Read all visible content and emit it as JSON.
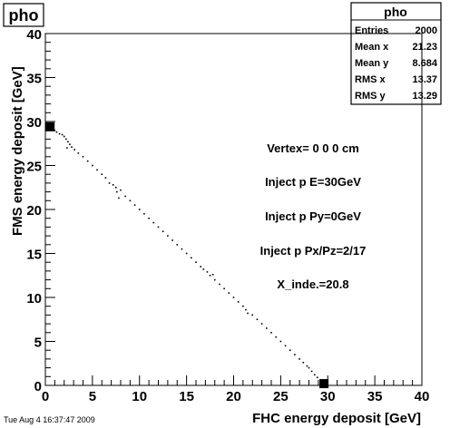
{
  "title_box": {
    "text": "pho"
  },
  "stats": {
    "header": "pho",
    "rows": [
      {
        "label": "Entries",
        "value": "2000"
      },
      {
        "label": "Mean x",
        "value": "21.23"
      },
      {
        "label": "Mean y",
        "value": "8.684"
      },
      {
        "label": "RMS x",
        "value": "13.37"
      },
      {
        "label": "RMS y",
        "value": "13.29"
      }
    ]
  },
  "annotations": [
    "Vertex= 0 0 0 cm",
    "Inject p E=30GeV",
    "Inject p Py=0GeV",
    "Inject p Px/Pz=2/17",
    "X_inde.=20.8"
  ],
  "timestamp": "Tue Aug  4 16:37:47 2009",
  "chart_data": {
    "type": "scatter",
    "title": "pho",
    "xlabel": "FHC energy deposit [GeV]",
    "ylabel": "FMS energy deposit [GeV]",
    "xlim": [
      0,
      40
    ],
    "ylim": [
      0,
      40
    ],
    "xticks": [
      0,
      5,
      10,
      15,
      20,
      25,
      30,
      35,
      40
    ],
    "yticks": [
      0,
      5,
      10,
      15,
      20,
      25,
      30,
      35,
      40
    ],
    "xticklabels": [
      "0",
      "5",
      "10",
      "15",
      "20",
      "25",
      "30",
      "35",
      "40"
    ],
    "yticklabels": [
      "0",
      "5",
      "10",
      "15",
      "20",
      "25",
      "30",
      "35",
      "40"
    ],
    "grid": false,
    "clusters": [
      {
        "x": 0.5,
        "y": 29.4,
        "dense": true
      },
      {
        "x": 29.6,
        "y": 0.2,
        "dense": true
      }
    ],
    "points": [
      [
        1.0,
        29.0
      ],
      [
        1.2,
        28.8
      ],
      [
        1.5,
        28.6
      ],
      [
        1.8,
        28.5
      ],
      [
        2.0,
        28.3
      ],
      [
        2.2,
        28.0
      ],
      [
        2.4,
        27.7
      ],
      [
        2.6,
        27.4
      ],
      [
        2.3,
        27.0
      ],
      [
        2.8,
        27.1
      ],
      [
        3.1,
        26.8
      ],
      [
        3.5,
        26.4
      ],
      [
        4.0,
        26.0
      ],
      [
        4.5,
        25.5
      ],
      [
        5.0,
        25.0
      ],
      [
        5.5,
        24.5
      ],
      [
        6.0,
        24.0
      ],
      [
        6.4,
        23.6
      ],
      [
        6.8,
        23.0
      ],
      [
        7.2,
        22.8
      ],
      [
        7.5,
        22.5
      ],
      [
        7.6,
        22.0
      ],
      [
        7.8,
        21.3
      ],
      [
        8.0,
        22.2
      ],
      [
        8.5,
        21.5
      ],
      [
        9.0,
        21.0
      ],
      [
        9.5,
        20.5
      ],
      [
        10.0,
        20.0
      ],
      [
        10.5,
        19.5
      ],
      [
        11.0,
        19.0
      ],
      [
        11.5,
        18.5
      ],
      [
        12.0,
        18.0
      ],
      [
        12.5,
        17.5
      ],
      [
        13.0,
        17.0
      ],
      [
        13.5,
        16.5
      ],
      [
        14.0,
        16.0
      ],
      [
        14.5,
        15.5
      ],
      [
        15.0,
        15.0
      ],
      [
        15.5,
        14.5
      ],
      [
        16.0,
        14.0
      ],
      [
        16.5,
        13.5
      ],
      [
        16.8,
        13.2
      ],
      [
        17.2,
        12.9
      ],
      [
        17.5,
        12.5
      ],
      [
        17.8,
        12.6
      ],
      [
        18.0,
        12.0
      ],
      [
        18.5,
        11.5
      ],
      [
        19.0,
        11.0
      ],
      [
        19.5,
        10.5
      ],
      [
        20.0,
        10.0
      ],
      [
        20.5,
        9.5
      ],
      [
        21.0,
        9.0
      ],
      [
        21.3,
        8.6
      ],
      [
        21.5,
        8.2
      ],
      [
        22.0,
        8.0
      ],
      [
        22.5,
        7.5
      ],
      [
        23.0,
        7.0
      ],
      [
        23.5,
        6.5
      ],
      [
        24.0,
        6.0
      ],
      [
        24.5,
        5.5
      ],
      [
        25.0,
        5.0
      ],
      [
        25.5,
        4.5
      ],
      [
        26.0,
        4.0
      ],
      [
        26.5,
        3.5
      ],
      [
        27.0,
        3.0
      ],
      [
        27.4,
        2.6
      ],
      [
        27.8,
        2.2
      ],
      [
        28.0,
        2.0
      ],
      [
        28.3,
        1.6
      ],
      [
        28.6,
        1.2
      ],
      [
        28.9,
        0.9
      ]
    ]
  }
}
